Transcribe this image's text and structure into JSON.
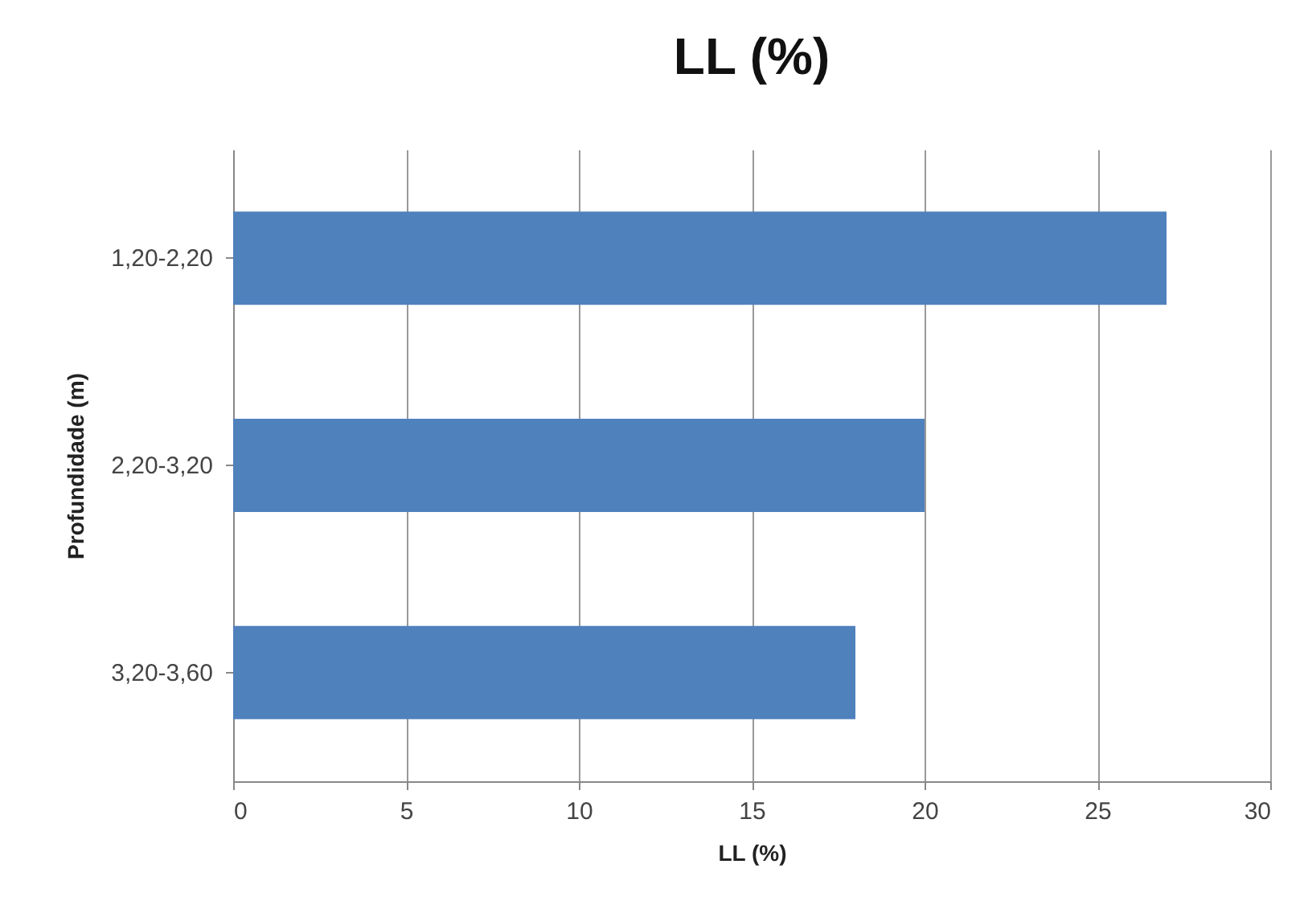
{
  "chart_data": {
    "type": "bar",
    "orientation": "horizontal",
    "title": "LL (%)",
    "xlabel": "LL (%)",
    "ylabel": "Profundidade (m)",
    "categories": [
      "1,20-2,20",
      "2,20-3,20",
      "3,20-3,60"
    ],
    "values": [
      27,
      20,
      18
    ],
    "color": "#4f81bd",
    "xlim": [
      0,
      30
    ],
    "xticks": [
      0,
      5,
      10,
      15,
      20,
      25,
      30
    ],
    "grid": "x"
  }
}
